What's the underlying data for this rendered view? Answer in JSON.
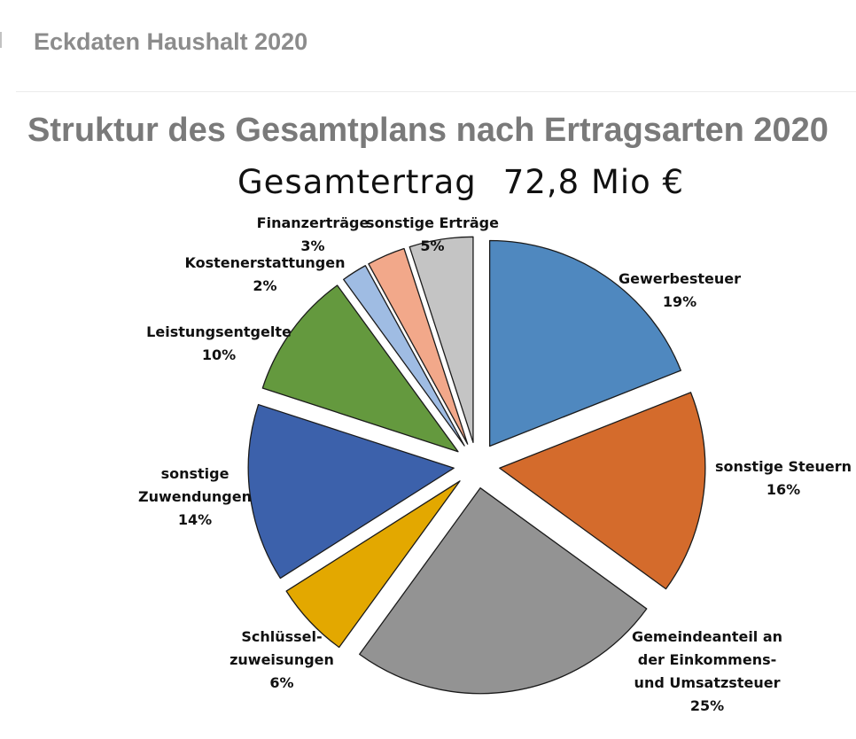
{
  "header": {
    "title": "Eckdaten Haushalt 2020"
  },
  "chart_data": {
    "type": "pie",
    "title": "Struktur des Gesamtplans nach Ertragsarten 2020",
    "subtitle_label": "Gesamtertrag",
    "subtitle_value": "72,8 Mio €",
    "exploded": true,
    "slices": [
      {
        "label_lines": [
          "Gewerbesteuer"
        ],
        "value": 19,
        "value_label": "19%",
        "color": "#4f88bf"
      },
      {
        "label_lines": [
          "sonstige Steuern"
        ],
        "value": 16,
        "value_label": "16%",
        "color": "#d46b2c"
      },
      {
        "label_lines": [
          "Gemeindeanteil an",
          "der Einkommens-",
          "und Umsatzsteuer"
        ],
        "value": 25,
        "value_label": "25%",
        "color": "#939393"
      },
      {
        "label_lines": [
          "Schlüssel-",
          "zuweisungen"
        ],
        "value": 6,
        "value_label": "6%",
        "color": "#e3a800"
      },
      {
        "label_lines": [
          "sonstige",
          "Zuwendungen"
        ],
        "value": 14,
        "value_label": "14%",
        "color": "#3c61ab"
      },
      {
        "label_lines": [
          "Leistungsentgelte"
        ],
        "value": 10,
        "value_label": "10%",
        "color": "#64993e"
      },
      {
        "label_lines": [
          "Kostenerstattungen"
        ],
        "value": 2,
        "value_label": "2%",
        "color": "#9fbce3"
      },
      {
        "label_lines": [
          "Finanzerträge"
        ],
        "value": 3,
        "value_label": "3%",
        "color": "#f2a88a"
      },
      {
        "label_lines": [
          "sonstige Erträge"
        ],
        "value": 5,
        "value_label": "5%",
        "color": "#c4c4c4"
      }
    ]
  }
}
